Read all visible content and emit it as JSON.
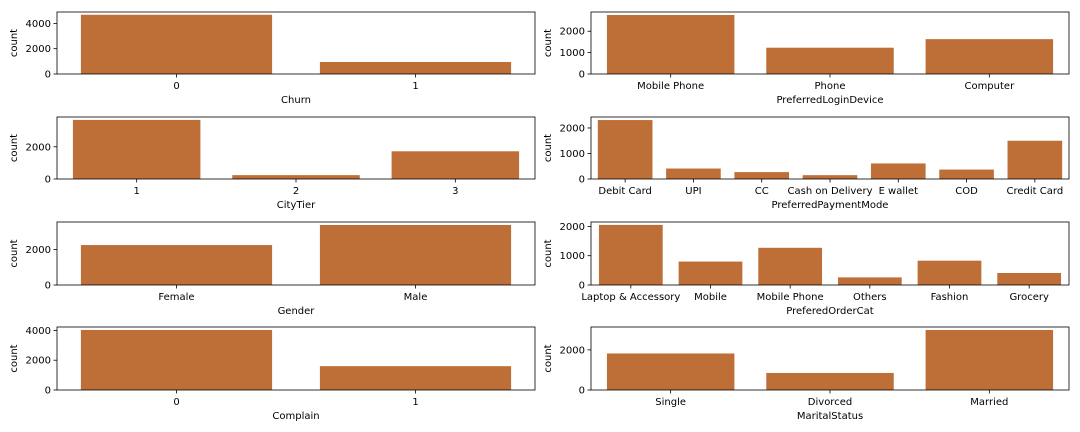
{
  "style": {
    "bar_color": "#be6e37",
    "axis_color": "#000000",
    "background": "#ffffff"
  },
  "chart_data": [
    {
      "type": "bar",
      "xlabel": "Churn",
      "ylabel": "count",
      "categories": [
        "0",
        "1"
      ],
      "values": [
        4680,
        950
      ],
      "ylim": [
        0,
        4900
      ],
      "yticks": [
        0,
        2000,
        4000
      ],
      "grid": false
    },
    {
      "type": "bar",
      "xlabel": "PreferredLoginDevice",
      "ylabel": "count",
      "categories": [
        "Mobile Phone",
        "Phone",
        "Computer"
      ],
      "values": [
        2760,
        1230,
        1630
      ],
      "ylim": [
        0,
        2900
      ],
      "yticks": [
        0,
        1000,
        2000
      ],
      "grid": false
    },
    {
      "type": "bar",
      "xlabel": "CityTier",
      "ylabel": "count",
      "categories": [
        "1",
        "2",
        "3"
      ],
      "values": [
        3670,
        240,
        1720
      ],
      "ylim": [
        0,
        3850
      ],
      "yticks": [
        0,
        2000
      ],
      "grid": false
    },
    {
      "type": "bar",
      "xlabel": "PreferredPaymentMode",
      "ylabel": "count",
      "categories": [
        "Debit Card",
        "UPI",
        "CC",
        "Cash on Delivery",
        "E wallet",
        "COD",
        "Credit Card"
      ],
      "values": [
        2310,
        410,
        270,
        150,
        610,
        370,
        1500
      ],
      "ylim": [
        0,
        2430
      ],
      "yticks": [
        0,
        1000,
        2000
      ],
      "grid": false
    },
    {
      "type": "bar",
      "xlabel": "Gender",
      "ylabel": "count",
      "categories": [
        "Female",
        "Male"
      ],
      "values": [
        2250,
        3380
      ],
      "ylim": [
        0,
        3550
      ],
      "yticks": [
        0,
        2000
      ],
      "grid": false
    },
    {
      "type": "bar",
      "xlabel": "PreferedOrderCat",
      "ylabel": "count",
      "categories": [
        "Laptop & Accessory",
        "Mobile",
        "Mobile Phone",
        "Others",
        "Fashion",
        "Grocery"
      ],
      "values": [
        2050,
        800,
        1270,
        260,
        830,
        410
      ],
      "ylim": [
        0,
        2150
      ],
      "yticks": [
        0,
        1000,
        2000
      ],
      "grid": false
    },
    {
      "type": "bar",
      "xlabel": "Complain",
      "ylabel": "count",
      "categories": [
        "0",
        "1"
      ],
      "values": [
        4030,
        1600
      ],
      "ylim": [
        0,
        4230
      ],
      "yticks": [
        0,
        2000,
        4000
      ],
      "grid": false
    },
    {
      "type": "bar",
      "xlabel": "MaritalStatus",
      "ylabel": "count",
      "categories": [
        "Single",
        "Divorced",
        "Married"
      ],
      "values": [
        1820,
        850,
        2990
      ],
      "ylim": [
        0,
        3140
      ],
      "yticks": [
        0,
        2000
      ],
      "grid": false
    }
  ]
}
